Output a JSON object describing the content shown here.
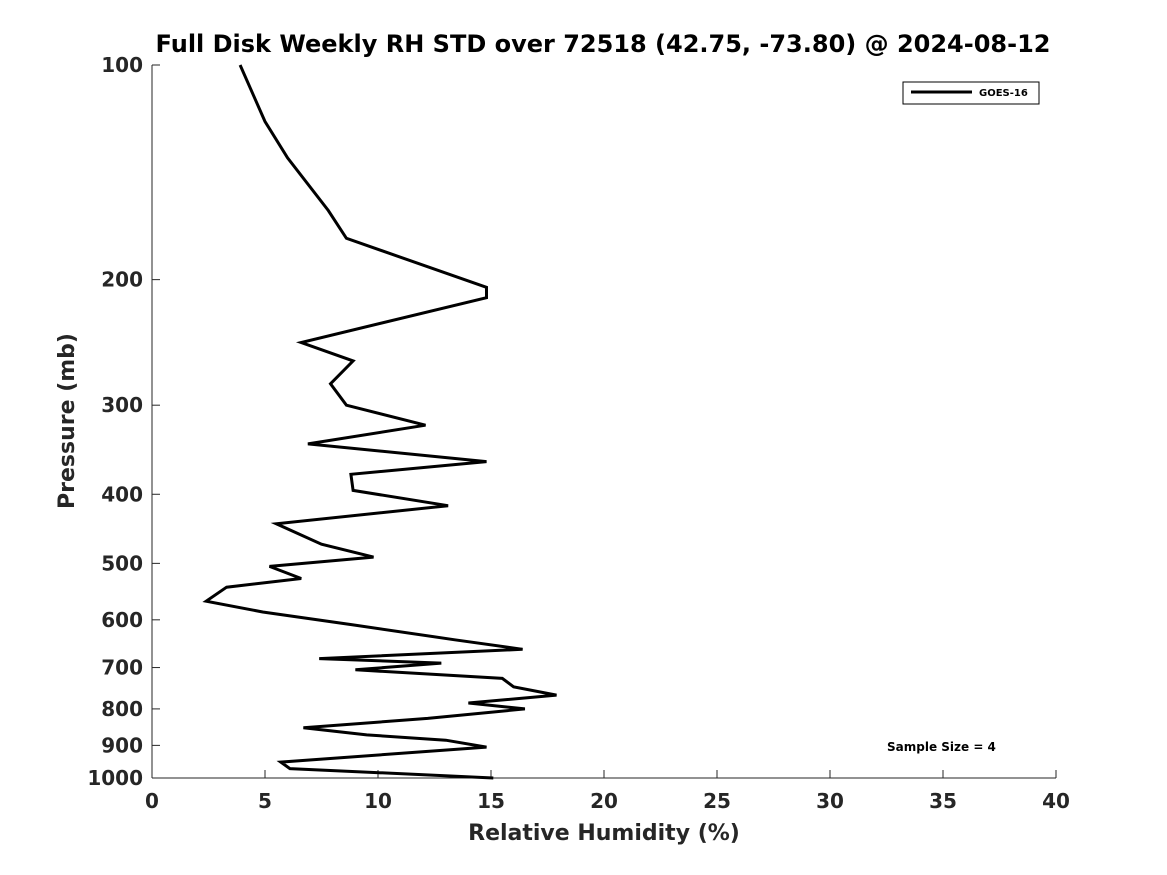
{
  "chart_data": {
    "type": "line",
    "title": "Full Disk Weekly RH STD over 72518 (42.75, -73.80) @ 2024-08-12",
    "xlabel": "Relative Humidity (%)",
    "ylabel": "Pressure (mb)",
    "xlim": [
      0,
      40
    ],
    "ylim": [
      1000,
      100
    ],
    "yscale": "log",
    "x_ticks": [
      0,
      5,
      10,
      15,
      20,
      25,
      30,
      35,
      40
    ],
    "y_ticks": [
      100,
      200,
      300,
      400,
      500,
      600,
      700,
      800,
      900,
      1000
    ],
    "grid": false,
    "legend_position": "top-right",
    "annotation": "Sample Size = 4",
    "series": [
      {
        "name": "GOES-16",
        "color": "#000000",
        "x": [
          3.9,
          5.0,
          6.0,
          7.8,
          8.6,
          14.8,
          14.8,
          6.6,
          8.9,
          7.9,
          8.6,
          12.1,
          6.9,
          14.8,
          8.8,
          8.9,
          13.1,
          5.5,
          7.5,
          9.8,
          5.2,
          6.6,
          3.3,
          2.4,
          4.9,
          8.9,
          13.4,
          16.4,
          7.4,
          12.8,
          9.0,
          15.5,
          16.0,
          17.9,
          14.0,
          16.5,
          12.2,
          6.7,
          9.5,
          13.0,
          14.8,
          5.7,
          6.1,
          15.1
        ],
        "y": [
          100,
          120,
          135,
          160,
          175,
          205,
          212,
          245,
          260,
          280,
          300,
          320,
          340,
          360,
          375,
          395,
          415,
          440,
          470,
          490,
          505,
          525,
          540,
          565,
          585,
          610,
          640,
          660,
          680,
          690,
          705,
          725,
          745,
          765,
          785,
          800,
          825,
          850,
          870,
          885,
          905,
          950,
          970,
          1000
        ]
      }
    ]
  }
}
